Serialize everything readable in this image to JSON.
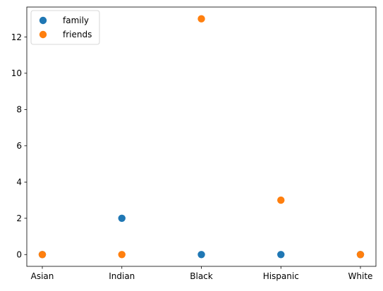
{
  "chart_data": {
    "type": "scatter",
    "categories": [
      "Asian",
      "Indian",
      "Black",
      "Hispanic",
      "White"
    ],
    "series": [
      {
        "name": "family",
        "color": "#1f77b4",
        "values": [
          0,
          2,
          0,
          0,
          0
        ]
      },
      {
        "name": "friends",
        "color": "#ff7f0e",
        "values": [
          0,
          0,
          13,
          3,
          0
        ]
      }
    ],
    "yticks": [
      0,
      2,
      4,
      6,
      8,
      10,
      12
    ],
    "ylim": [
      -0.65,
      13.65
    ],
    "grid": false,
    "legend_position": "upper-left"
  }
}
